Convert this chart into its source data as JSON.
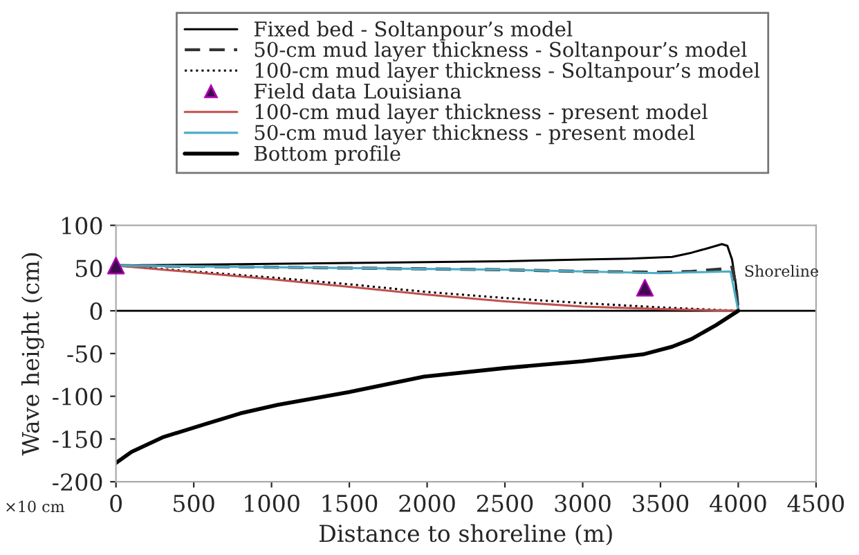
{
  "chart_data": {
    "type": "line",
    "xlabel": "Distance to shoreline (m)",
    "ylabel": "Wave height (cm)",
    "xlim": [
      0,
      4500
    ],
    "xticks": [
      0,
      500,
      1000,
      1500,
      2000,
      2500,
      3000,
      3500,
      4000,
      4500
    ],
    "ylim": [
      -200,
      100
    ],
    "yticks": [
      -200,
      -150,
      -100,
      -50,
      0,
      50,
      100
    ],
    "grid": false,
    "legend": "top",
    "ref_lines": [
      {
        "axis": "y",
        "value": 0,
        "color": "#000000"
      }
    ],
    "annotations": [
      {
        "text": "Shoreline",
        "x": 4000,
        "y": 45
      },
      "×10 cm"
    ],
    "series": [
      {
        "name": "Fixed bed - Soltanpour’s model",
        "line_style": "solid",
        "color": "#000000",
        "x": [
          0,
          500,
          1000,
          1500,
          2000,
          2500,
          3000,
          3300,
          3575,
          3700,
          3800,
          3895,
          3930,
          3960,
          3985,
          4000
        ],
        "values": [
          53,
          54,
          55,
          56,
          57,
          58,
          60,
          61,
          63,
          68,
          73,
          78,
          76,
          60,
          30,
          0
        ]
      },
      {
        "name": "50-cm mud layer thickness - Soltanpour’s model",
        "line_style": "dashed",
        "color": "#333333",
        "x": [
          0,
          500,
          1000,
          1500,
          2000,
          2500,
          3000,
          3500,
          3700,
          3900,
          3960,
          3985,
          4000
        ],
        "values": [
          53,
          52,
          51,
          50,
          49,
          48,
          46,
          45,
          46,
          49,
          51,
          30,
          0
        ]
      },
      {
        "name": "100-cm mud layer thickness - Soltanpour’s model",
        "line_style": "dotted",
        "color": "#000000",
        "x": [
          0,
          500,
          1000,
          1500,
          2000,
          2500,
          3000,
          3500,
          4000
        ],
        "values": [
          53,
          46,
          39,
          31,
          22,
          15,
          9,
          4,
          0
        ]
      },
      {
        "name": "Field data Louisiana",
        "type": "scatter",
        "marker": "triangle",
        "color": "#3d0a4f",
        "x": [
          0,
          3400
        ],
        "values": [
          53,
          27
        ]
      },
      {
        "name": "100-cm mud layer thickness - present model",
        "line_style": "solid",
        "color": "#c0504d",
        "x": [
          0,
          500,
          1000,
          1500,
          2000,
          2500,
          3000,
          3500,
          4000
        ],
        "values": [
          53,
          45,
          37,
          28,
          19,
          11,
          5,
          2,
          0
        ]
      },
      {
        "name": "50-cm mud layer thickness - present model",
        "line_style": "solid",
        "color": "#4bacc6",
        "x": [
          0,
          500,
          1000,
          1500,
          2000,
          2500,
          3000,
          3500,
          3700,
          3950,
          4000
        ],
        "values": [
          53,
          52,
          51,
          50,
          49,
          48,
          46,
          44,
          45,
          46,
          0
        ]
      },
      {
        "name": "Bottom profile",
        "line_style": "solid",
        "color": "#000000",
        "x": [
          0,
          100,
          300,
          566,
          800,
          1040,
          1500,
          1980,
          2500,
          3000,
          3388,
          3575,
          3700,
          3855,
          4000
        ],
        "values": [
          -178,
          -165,
          -148,
          -133,
          -120,
          -110,
          -95,
          -77,
          -67,
          -59,
          -51,
          -42,
          -33,
          -17,
          0
        ]
      }
    ]
  }
}
